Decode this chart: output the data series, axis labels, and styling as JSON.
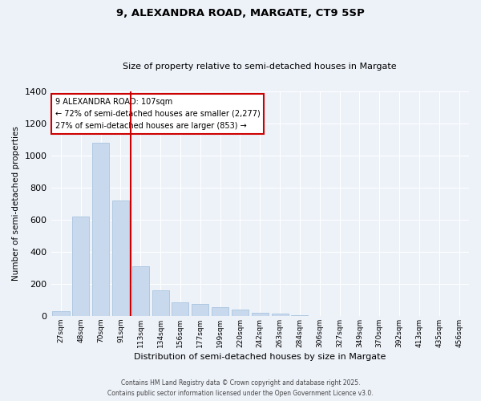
{
  "title_line1": "9, ALEXANDRA ROAD, MARGATE, CT9 5SP",
  "title_line2": "Size of property relative to semi-detached houses in Margate",
  "xlabel": "Distribution of semi-detached houses by size in Margate",
  "ylabel": "Number of semi-detached properties",
  "categories": [
    "27sqm",
    "48sqm",
    "70sqm",
    "91sqm",
    "113sqm",
    "134sqm",
    "156sqm",
    "177sqm",
    "199sqm",
    "220sqm",
    "242sqm",
    "263sqm",
    "284sqm",
    "306sqm",
    "327sqm",
    "349sqm",
    "370sqm",
    "392sqm",
    "413sqm",
    "435sqm",
    "456sqm"
  ],
  "values": [
    30,
    620,
    1080,
    720,
    310,
    160,
    85,
    75,
    55,
    40,
    20,
    15,
    5,
    0,
    0,
    0,
    0,
    0,
    0,
    0,
    0
  ],
  "bar_color": "#c9d9ed",
  "bar_edge_color": "#a8c4de",
  "annotation_title": "9 ALEXANDRA ROAD: 107sqm",
  "annotation_smaller": "← 72% of semi-detached houses are smaller (2,277)",
  "annotation_larger": "27% of semi-detached houses are larger (853) →",
  "annotation_box_facecolor": "#ffffff",
  "annotation_box_edgecolor": "#cc0000",
  "line_color": "#cc0000",
  "ylim": [
    0,
    1400
  ],
  "yticks": [
    0,
    200,
    400,
    600,
    800,
    1000,
    1200,
    1400
  ],
  "background_color": "#edf2f9",
  "grid_color": "#ffffff",
  "footer_line1": "Contains HM Land Registry data © Crown copyright and database right 2025.",
  "footer_line2": "Contains public sector information licensed under the Open Government Licence v3.0.",
  "prop_line_index": 3.5
}
